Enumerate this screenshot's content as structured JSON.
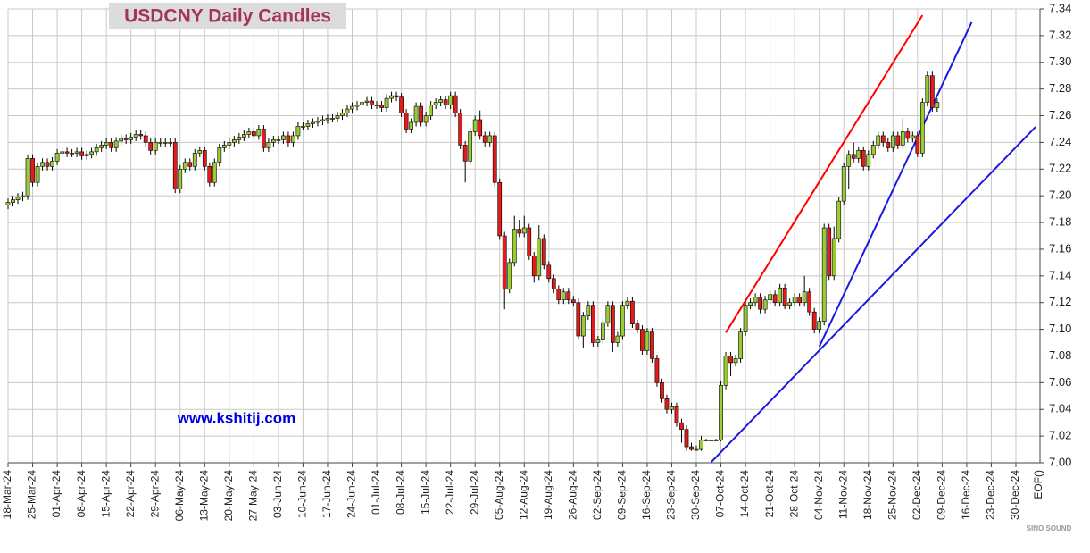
{
  "chart_data": {
    "type": "candlestick",
    "title": "USDCNY Daily Candles",
    "annotation": "www.kshitij.com",
    "watermark": "SINO SOUND",
    "x_end_label": "EOF()",
    "up_color": "#99cc33",
    "down_color": "#e31b1b",
    "grid": true,
    "xlim": [
      "2024-03-18",
      "2025-01-03"
    ],
    "ylim": [
      7.0,
      7.34
    ],
    "yticks": [
      {
        "value": 7.0,
        "label": "7.00"
      },
      {
        "value": 7.02,
        "label": "7.02"
      },
      {
        "value": 7.04,
        "label": "7.04"
      },
      {
        "value": 7.06,
        "label": "7.06"
      },
      {
        "value": 7.08,
        "label": "7.08"
      },
      {
        "value": 7.1,
        "label": "7.10"
      },
      {
        "value": 7.12,
        "label": "7.12"
      },
      {
        "value": 7.14,
        "label": "7.14"
      },
      {
        "value": 7.16,
        "label": "7.16"
      },
      {
        "value": 7.18,
        "label": "7.18"
      },
      {
        "value": 7.2,
        "label": "7.20"
      },
      {
        "value": 7.22,
        "label": "7.22"
      },
      {
        "value": 7.24,
        "label": "7.24"
      },
      {
        "value": 7.26,
        "label": "7.26"
      },
      {
        "value": 7.28,
        "label": "7.28"
      },
      {
        "value": 7.3,
        "label": "7.30"
      },
      {
        "value": 7.32,
        "label": "7.32"
      },
      {
        "value": 7.34,
        "label": "7.34"
      }
    ],
    "xticks": [
      {
        "value": "2024-03-18",
        "label": "18-Mar-24"
      },
      {
        "value": "2024-03-25",
        "label": "25-Mar-24"
      },
      {
        "value": "2024-04-01",
        "label": "01-Apr-24"
      },
      {
        "value": "2024-04-08",
        "label": "08-Apr-24"
      },
      {
        "value": "2024-04-15",
        "label": "15-Apr-24"
      },
      {
        "value": "2024-04-22",
        "label": "22-Apr-24"
      },
      {
        "value": "2024-04-29",
        "label": "29-Apr-24"
      },
      {
        "value": "2024-05-06",
        "label": "06-May-24"
      },
      {
        "value": "2024-05-13",
        "label": "13-May-24"
      },
      {
        "value": "2024-05-20",
        "label": "20-May-24"
      },
      {
        "value": "2024-05-27",
        "label": "27-May-24"
      },
      {
        "value": "2024-06-03",
        "label": "03-Jun-24"
      },
      {
        "value": "2024-06-10",
        "label": "10-Jun-24"
      },
      {
        "value": "2024-06-17",
        "label": "17-Jun-24"
      },
      {
        "value": "2024-06-24",
        "label": "24-Jun-24"
      },
      {
        "value": "2024-07-01",
        "label": "01-Jul-24"
      },
      {
        "value": "2024-07-08",
        "label": "08-Jul-24"
      },
      {
        "value": "2024-07-15",
        "label": "15-Jul-24"
      },
      {
        "value": "2024-07-22",
        "label": "22-Jul-24"
      },
      {
        "value": "2024-07-29",
        "label": "29-Jul-24"
      },
      {
        "value": "2024-08-05",
        "label": "05-Aug-24"
      },
      {
        "value": "2024-08-12",
        "label": "12-Aug-24"
      },
      {
        "value": "2024-08-19",
        "label": "19-Aug-24"
      },
      {
        "value": "2024-08-26",
        "label": "26-Aug-24"
      },
      {
        "value": "2024-09-02",
        "label": "02-Sep-24"
      },
      {
        "value": "2024-09-09",
        "label": "09-Sep-24"
      },
      {
        "value": "2024-09-16",
        "label": "16-Sep-24"
      },
      {
        "value": "2024-09-23",
        "label": "23-Sep-24"
      },
      {
        "value": "2024-09-30",
        "label": "30-Sep-24"
      },
      {
        "value": "2024-10-07",
        "label": "07-Oct-24"
      },
      {
        "value": "2024-10-14",
        "label": "14-Oct-24"
      },
      {
        "value": "2024-10-21",
        "label": "21-Oct-24"
      },
      {
        "value": "2024-10-28",
        "label": "28-Oct-24"
      },
      {
        "value": "2024-11-04",
        "label": "04-Nov-24"
      },
      {
        "value": "2024-11-11",
        "label": "11-Nov-24"
      },
      {
        "value": "2024-11-18",
        "label": "18-Nov-24"
      },
      {
        "value": "2024-11-25",
        "label": "25-Nov-24"
      },
      {
        "value": "2024-12-02",
        "label": "02-Dec-24"
      },
      {
        "value": "2024-12-09",
        "label": "09-Dec-24"
      },
      {
        "value": "2024-12-16",
        "label": "16-Dec-24"
      },
      {
        "value": "2024-12-23",
        "label": "23-Dec-24"
      },
      {
        "value": "2024-12-30",
        "label": "30-Dec-24"
      }
    ],
    "x": [
      "2024-03-18",
      "2024-03-19",
      "2024-03-20",
      "2024-03-21",
      "2024-03-22",
      "2024-03-25",
      "2024-03-26",
      "2024-03-27",
      "2024-03-28",
      "2024-03-29",
      "2024-04-01",
      "2024-04-02",
      "2024-04-03",
      "2024-04-04",
      "2024-04-05",
      "2024-04-08",
      "2024-04-09",
      "2024-04-10",
      "2024-04-11",
      "2024-04-12",
      "2024-04-15",
      "2024-04-16",
      "2024-04-17",
      "2024-04-18",
      "2024-04-19",
      "2024-04-22",
      "2024-04-23",
      "2024-04-24",
      "2024-04-25",
      "2024-04-26",
      "2024-04-29",
      "2024-04-30",
      "2024-05-01",
      "2024-05-02",
      "2024-05-03",
      "2024-05-06",
      "2024-05-07",
      "2024-05-08",
      "2024-05-09",
      "2024-05-10",
      "2024-05-13",
      "2024-05-14",
      "2024-05-15",
      "2024-05-16",
      "2024-05-17",
      "2024-05-20",
      "2024-05-21",
      "2024-05-22",
      "2024-05-23",
      "2024-05-24",
      "2024-05-27",
      "2024-05-28",
      "2024-05-29",
      "2024-05-30",
      "2024-05-31",
      "2024-06-03",
      "2024-06-04",
      "2024-06-05",
      "2024-06-06",
      "2024-06-07",
      "2024-06-10",
      "2024-06-11",
      "2024-06-12",
      "2024-06-13",
      "2024-06-14",
      "2024-06-17",
      "2024-06-18",
      "2024-06-19",
      "2024-06-20",
      "2024-06-21",
      "2024-06-24",
      "2024-06-25",
      "2024-06-26",
      "2024-06-27",
      "2024-06-28",
      "2024-07-01",
      "2024-07-02",
      "2024-07-03",
      "2024-07-04",
      "2024-07-05",
      "2024-07-08",
      "2024-07-09",
      "2024-07-10",
      "2024-07-11",
      "2024-07-12",
      "2024-07-15",
      "2024-07-16",
      "2024-07-17",
      "2024-07-18",
      "2024-07-19",
      "2024-07-22",
      "2024-07-23",
      "2024-07-24",
      "2024-07-25",
      "2024-07-26",
      "2024-07-29",
      "2024-07-30",
      "2024-07-31",
      "2024-08-01",
      "2024-08-02",
      "2024-08-05",
      "2024-08-06",
      "2024-08-07",
      "2024-08-08",
      "2024-08-09",
      "2024-08-12",
      "2024-08-13",
      "2024-08-14",
      "2024-08-15",
      "2024-08-16",
      "2024-08-19",
      "2024-08-20",
      "2024-08-21",
      "2024-08-22",
      "2024-08-23",
      "2024-08-26",
      "2024-08-27",
      "2024-08-28",
      "2024-08-29",
      "2024-08-30",
      "2024-09-02",
      "2024-09-03",
      "2024-09-04",
      "2024-09-05",
      "2024-09-06",
      "2024-09-09",
      "2024-09-10",
      "2024-09-11",
      "2024-09-12",
      "2024-09-13",
      "2024-09-16",
      "2024-09-17",
      "2024-09-18",
      "2024-09-19",
      "2024-09-20",
      "2024-09-23",
      "2024-09-24",
      "2024-09-25",
      "2024-09-26",
      "2024-09-27",
      "2024-09-30",
      "2024-10-01",
      "2024-10-02",
      "2024-10-03",
      "2024-10-04",
      "2024-10-07",
      "2024-10-08",
      "2024-10-09",
      "2024-10-10",
      "2024-10-11",
      "2024-10-14",
      "2024-10-15",
      "2024-10-16",
      "2024-10-17",
      "2024-10-18",
      "2024-10-21",
      "2024-10-22",
      "2024-10-23",
      "2024-10-24",
      "2024-10-25",
      "2024-10-28",
      "2024-10-29",
      "2024-10-30",
      "2024-10-31",
      "2024-11-01",
      "2024-11-04",
      "2024-11-05",
      "2024-11-06",
      "2024-11-07",
      "2024-11-08",
      "2024-11-11",
      "2024-11-12",
      "2024-11-13",
      "2024-11-14",
      "2024-11-15",
      "2024-11-18",
      "2024-11-19",
      "2024-11-20",
      "2024-11-21",
      "2024-11-22",
      "2024-11-25",
      "2024-11-26",
      "2024-11-27",
      "2024-11-28",
      "2024-11-29",
      "2024-12-02",
      "2024-12-03",
      "2024-12-04",
      "2024-12-05",
      "2024-12-06"
    ],
    "open": [
      7.193,
      7.195,
      7.197,
      7.199,
      7.2,
      7.228,
      7.21,
      7.222,
      7.225,
      7.222,
      7.226,
      7.232,
      7.233,
      7.232,
      7.232,
      7.233,
      7.23,
      7.231,
      7.233,
      7.236,
      7.238,
      7.24,
      7.236,
      7.241,
      7.243,
      7.242,
      7.244,
      7.246,
      7.245,
      7.24,
      7.234,
      7.24,
      7.24,
      7.24,
      7.24,
      7.205,
      7.22,
      7.225,
      7.222,
      7.232,
      7.234,
      7.222,
      7.21,
      7.225,
      7.236,
      7.238,
      7.24,
      7.242,
      7.244,
      7.246,
      7.248,
      7.245,
      7.25,
      7.236,
      7.24,
      7.242,
      7.242,
      7.245,
      7.24,
      7.245,
      7.252,
      7.252,
      7.254,
      7.255,
      7.256,
      7.257,
      7.258,
      7.258,
      7.26,
      7.262,
      7.265,
      7.267,
      7.268,
      7.27,
      7.271,
      7.268,
      7.268,
      7.266,
      7.273,
      7.275,
      7.274,
      7.262,
      7.25,
      7.255,
      7.267,
      7.255,
      7.26,
      7.268,
      7.27,
      7.272,
      7.268,
      7.275,
      7.262,
      7.238,
      7.226,
      7.248,
      7.257,
      7.245,
      7.24,
      7.245,
      7.21,
      7.17,
      7.13,
      7.15,
      7.175,
      7.172,
      7.176,
      7.155,
      7.14,
      7.168,
      7.148,
      7.138,
      7.13,
      7.122,
      7.128,
      7.122,
      7.12,
      7.095,
      7.11,
      7.118,
      7.09,
      7.092,
      7.105,
      7.118,
      7.09,
      7.095,
      7.118,
      7.121,
      7.104,
      7.1,
      7.084,
      7.098,
      7.078,
      7.06,
      7.048,
      7.04,
      7.042,
      7.03,
      7.025,
      7.012,
      7.01,
      7.01,
      7.017,
      7.017,
      7.017,
      7.017,
      7.058,
      7.08,
      7.075,
      7.078,
      7.098,
      7.118,
      7.12,
      7.124,
      7.115,
      7.122,
      7.126,
      7.12,
      7.131,
      7.118,
      7.12,
      7.124,
      7.12,
      7.128,
      7.113,
      7.1,
      7.106,
      7.176,
      7.14,
      7.168,
      7.196,
      7.222,
      7.231,
      7.228,
      7.234,
      7.222,
      7.231,
      7.238,
      7.245,
      7.24,
      7.236,
      7.245,
      7.238,
      7.248,
      7.243,
      7.245,
      7.232,
      7.27,
      7.29,
      7.266
    ],
    "high": [
      7.198,
      7.2,
      7.202,
      7.203,
      7.231,
      7.231,
      7.225,
      7.228,
      7.228,
      7.229,
      7.235,
      7.236,
      7.236,
      7.235,
      7.236,
      7.236,
      7.234,
      7.236,
      7.239,
      7.241,
      7.243,
      7.243,
      7.244,
      7.246,
      7.246,
      7.247,
      7.249,
      7.249,
      7.248,
      7.243,
      7.243,
      7.243,
      7.243,
      7.243,
      7.243,
      7.223,
      7.228,
      7.228,
      7.235,
      7.237,
      7.237,
      7.225,
      7.228,
      7.239,
      7.241,
      7.243,
      7.245,
      7.247,
      7.249,
      7.251,
      7.251,
      7.253,
      7.253,
      7.243,
      7.245,
      7.245,
      7.248,
      7.248,
      7.248,
      7.255,
      7.255,
      7.257,
      7.258,
      7.259,
      7.26,
      7.261,
      7.261,
      7.263,
      7.265,
      7.268,
      7.27,
      7.271,
      7.273,
      7.274,
      7.274,
      7.271,
      7.271,
      7.276,
      7.278,
      7.278,
      7.277,
      7.265,
      7.258,
      7.27,
      7.27,
      7.263,
      7.271,
      7.273,
      7.275,
      7.275,
      7.278,
      7.278,
      7.265,
      7.241,
      7.251,
      7.26,
      7.264,
      7.248,
      7.248,
      7.248,
      7.213,
      7.173,
      7.153,
      7.185,
      7.182,
      7.185,
      7.179,
      7.158,
      7.178,
      7.171,
      7.151,
      7.141,
      7.133,
      7.131,
      7.131,
      7.125,
      7.123,
      7.113,
      7.121,
      7.121,
      7.095,
      7.108,
      7.121,
      7.121,
      7.098,
      7.121,
      7.124,
      7.124,
      7.107,
      7.103,
      7.101,
      7.101,
      7.081,
      7.063,
      7.051,
      7.045,
      7.045,
      7.033,
      7.028,
      7.015,
      7.013,
      7.02,
      7.018,
      7.018,
      7.018,
      7.061,
      7.083,
      7.083,
      7.081,
      7.101,
      7.121,
      7.123,
      7.127,
      7.127,
      7.125,
      7.129,
      7.129,
      7.134,
      7.134,
      7.123,
      7.127,
      7.127,
      7.14,
      7.131,
      7.116,
      7.109,
      7.179,
      7.179,
      7.177,
      7.199,
      7.225,
      7.234,
      7.24,
      7.237,
      7.237,
      7.234,
      7.241,
      7.248,
      7.248,
      7.243,
      7.248,
      7.248,
      7.258,
      7.251,
      7.248,
      7.248,
      7.273,
      7.293,
      7.293,
      7.273
    ],
    "low": [
      7.19,
      7.192,
      7.194,
      7.196,
      7.197,
      7.207,
      7.207,
      7.219,
      7.219,
      7.219,
      7.223,
      7.229,
      7.229,
      7.229,
      7.229,
      7.227,
      7.227,
      7.228,
      7.23,
      7.233,
      7.235,
      7.233,
      7.233,
      7.238,
      7.239,
      7.239,
      7.241,
      7.242,
      7.237,
      7.231,
      7.231,
      7.237,
      7.237,
      7.237,
      7.202,
      7.202,
      7.217,
      7.219,
      7.219,
      7.229,
      7.219,
      7.207,
      7.207,
      7.222,
      7.233,
      7.235,
      7.237,
      7.239,
      7.241,
      7.243,
      7.242,
      7.242,
      7.233,
      7.233,
      7.237,
      7.239,
      7.239,
      7.237,
      7.237,
      7.242,
      7.249,
      7.249,
      7.251,
      7.252,
      7.253,
      7.254,
      7.255,
      7.255,
      7.257,
      7.259,
      7.262,
      7.264,
      7.265,
      7.267,
      7.265,
      7.265,
      7.263,
      7.263,
      7.27,
      7.271,
      7.259,
      7.247,
      7.247,
      7.252,
      7.252,
      7.252,
      7.257,
      7.265,
      7.267,
      7.265,
      7.265,
      7.259,
      7.235,
      7.21,
      7.223,
      7.245,
      7.242,
      7.237,
      7.237,
      7.207,
      7.167,
      7.115,
      7.127,
      7.147,
      7.169,
      7.169,
      7.152,
      7.135,
      7.137,
      7.145,
      7.135,
      7.127,
      7.119,
      7.119,
      7.119,
      7.117,
      7.092,
      7.086,
      7.107,
      7.087,
      7.087,
      7.089,
      7.102,
      7.083,
      7.087,
      7.092,
      7.115,
      7.101,
      7.097,
      7.081,
      7.081,
      7.075,
      7.057,
      7.045,
      7.037,
      7.037,
      7.027,
      7.015,
      7.009,
      7.009,
      7.009,
      7.009,
      7.016,
      7.016,
      7.016,
      7.016,
      7.055,
      7.065,
      7.072,
      7.075,
      7.095,
      7.115,
      7.117,
      7.112,
      7.112,
      7.119,
      7.117,
      7.117,
      7.115,
      7.115,
      7.117,
      7.117,
      7.117,
      7.11,
      7.097,
      7.097,
      7.103,
      7.137,
      7.137,
      7.165,
      7.193,
      7.205,
      7.225,
      7.225,
      7.219,
      7.219,
      7.228,
      7.235,
      7.237,
      7.233,
      7.233,
      7.235,
      7.235,
      7.24,
      7.24,
      7.229,
      7.229,
      7.267,
      7.263,
      7.263
    ],
    "close": [
      7.195,
      7.197,
      7.199,
      7.2,
      7.228,
      7.21,
      7.222,
      7.225,
      7.222,
      7.226,
      7.232,
      7.233,
      7.232,
      7.232,
      7.233,
      7.23,
      7.231,
      7.233,
      7.236,
      7.238,
      7.24,
      7.236,
      7.241,
      7.243,
      7.242,
      7.244,
      7.246,
      7.245,
      7.24,
      7.234,
      7.24,
      7.24,
      7.24,
      7.24,
      7.205,
      7.22,
      7.225,
      7.222,
      7.232,
      7.234,
      7.222,
      7.21,
      7.225,
      7.236,
      7.238,
      7.24,
      7.242,
      7.244,
      7.246,
      7.248,
      7.245,
      7.25,
      7.236,
      7.24,
      7.242,
      7.242,
      7.245,
      7.24,
      7.245,
      7.252,
      7.252,
      7.254,
      7.255,
      7.256,
      7.257,
      7.258,
      7.258,
      7.26,
      7.262,
      7.265,
      7.267,
      7.268,
      7.27,
      7.271,
      7.268,
      7.268,
      7.266,
      7.273,
      7.275,
      7.274,
      7.262,
      7.25,
      7.255,
      7.267,
      7.255,
      7.26,
      7.268,
      7.27,
      7.272,
      7.268,
      7.275,
      7.262,
      7.238,
      7.226,
      7.248,
      7.257,
      7.245,
      7.24,
      7.245,
      7.21,
      7.17,
      7.13,
      7.15,
      7.175,
      7.172,
      7.176,
      7.155,
      7.14,
      7.168,
      7.148,
      7.138,
      7.13,
      7.122,
      7.128,
      7.122,
      7.12,
      7.095,
      7.11,
      7.118,
      7.09,
      7.092,
      7.105,
      7.118,
      7.09,
      7.095,
      7.118,
      7.121,
      7.104,
      7.1,
      7.084,
      7.098,
      7.078,
      7.06,
      7.048,
      7.04,
      7.042,
      7.03,
      7.025,
      7.012,
      7.01,
      7.01,
      7.017,
      7.017,
      7.017,
      7.017,
      7.058,
      7.08,
      7.075,
      7.078,
      7.098,
      7.118,
      7.12,
      7.124,
      7.115,
      7.122,
      7.126,
      7.12,
      7.131,
      7.118,
      7.12,
      7.124,
      7.12,
      7.128,
      7.113,
      7.1,
      7.106,
      7.176,
      7.14,
      7.168,
      7.196,
      7.222,
      7.231,
      7.228,
      7.234,
      7.222,
      7.231,
      7.238,
      7.245,
      7.24,
      7.236,
      7.245,
      7.238,
      7.248,
      7.243,
      7.245,
      7.232,
      7.27,
      7.29,
      7.266,
      7.27
    ],
    "trendlines": [
      {
        "color": "#ff0000",
        "from": [
          "2024-10-08",
          7.0975
        ],
        "to": [
          "2024-12-03",
          7.3353
        ]
      },
      {
        "color": "#1a1adc",
        "from": [
          "2024-10-03",
          7.0004
        ],
        "to": [
          "2025-01-03",
          7.2516
        ]
      },
      {
        "color": "#1a1adc",
        "from": [
          "2024-11-04",
          7.0868
        ],
        "to": [
          "2024-12-17",
          7.33
        ]
      }
    ]
  }
}
